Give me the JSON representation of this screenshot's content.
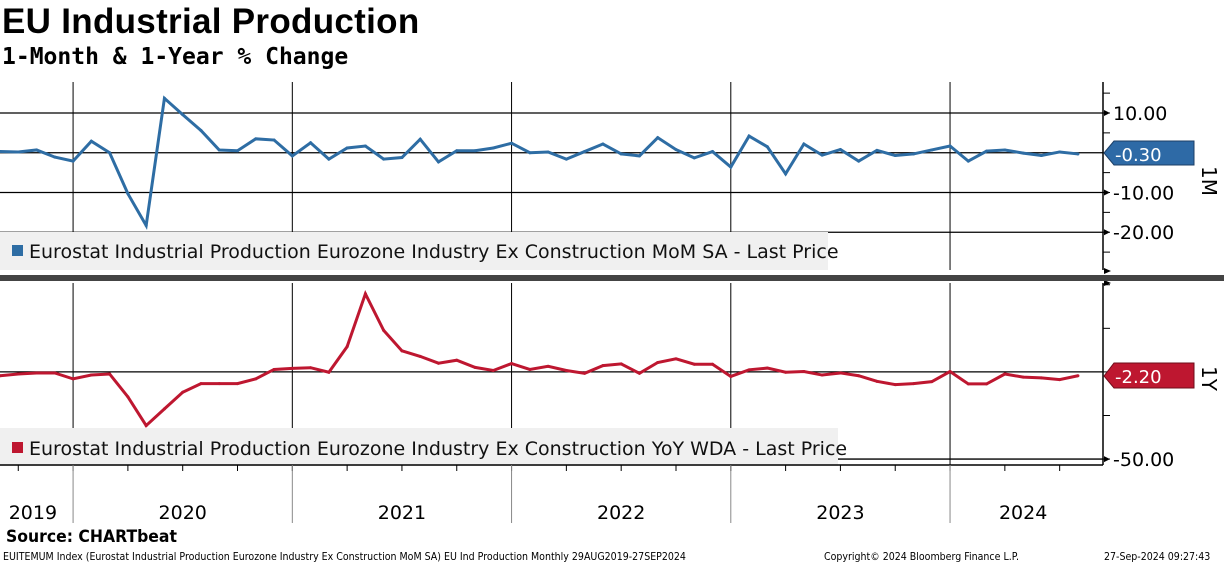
{
  "header": {
    "title": "EU Industrial Production",
    "subtitle": "1-Month & 1-Year % Change"
  },
  "footer": {
    "source": "Source: CHARTbeat",
    "description": "EUITEMUM Index (Eurostat Industrial Production Eurozone Industry Ex Construction MoM SA) EU Ind Production  Monthly 29AUG2019-27SEP2024",
    "copyright": "Copyright© 2024 Bloomberg Finance L.P.",
    "timestamp": "27-Sep-2024 09:27:43"
  },
  "colors": {
    "mom": "#2e6da4",
    "yoy": "#be1730",
    "legend_bg": "#f0f0f0"
  },
  "chart_data": [
    {
      "type": "line",
      "panel": "1M",
      "title": "1-Month % Change",
      "legend": "Eurostat Industrial Production Eurozone Industry Ex Construction MoM SA - Last Price",
      "last_value_label": "-0.30",
      "start": "2019-09",
      "frequency": "monthly",
      "x_tick_labels": [
        "2019",
        "2020",
        "2021",
        "2022",
        "2023",
        "2024"
      ],
      "y_tick_labels": [
        "10.00",
        "-10.00",
        "-20.00"
      ],
      "y_ticks": [
        10,
        -10,
        -20
      ],
      "ylim": [
        -29.5,
        17.8
      ],
      "values": [
        0.3,
        0.2,
        0.7,
        -1.1,
        -2.1,
        2.9,
        0.0,
        -10.3,
        -18.3,
        13.7,
        9.6,
        5.6,
        0.7,
        0.5,
        3.5,
        3.2,
        -0.8,
        2.5,
        -1.6,
        1.2,
        1.7,
        -1.6,
        -1.2,
        3.4,
        -2.3,
        0.5,
        0.5,
        1.2,
        2.4,
        0.0,
        0.2,
        -1.6,
        0.3,
        2.2,
        -0.3,
        -0.8,
        3.8,
        0.8,
        -1.3,
        0.3,
        -3.6,
        4.2,
        1.5,
        -5.3,
        2.2,
        -0.6,
        0.8,
        -2.1,
        0.6,
        -0.7,
        -0.3,
        0.7,
        1.7,
        -2.1,
        0.4,
        0.7,
        -0.1,
        -0.7,
        0.2,
        -0.3
      ]
    },
    {
      "type": "line",
      "panel": "1Y",
      "title": "1-Year % Change",
      "legend": "Eurostat Industrial Production Eurozone Industry Ex Construction YoY WDA - Last Price",
      "last_value_label": "-2.20",
      "start": "2019-09",
      "frequency": "monthly",
      "y_tick_labels": [
        "-50.00"
      ],
      "y_ticks": [
        -50
      ],
      "ylim": [
        -53.4,
        51
      ],
      "values": [
        -2.2,
        -1.2,
        -0.6,
        -0.6,
        -4.0,
        -1.8,
        -1.2,
        -14.3,
        -30.8,
        -21.2,
        -11.7,
        -6.7,
        -6.7,
        -6.7,
        -4.0,
        1.4,
        2.0,
        2.4,
        -0.2,
        14.5,
        44.8,
        23.8,
        12.1,
        8.9,
        5.0,
        6.7,
        2.6,
        0.8,
        4.8,
        1.4,
        3.2,
        0.8,
        -0.8,
        3.6,
        4.6,
        -0.8,
        5.4,
        7.5,
        4.4,
        4.4,
        -2.6,
        1.2,
        2.2,
        -0.2,
        0.2,
        -1.8,
        -0.6,
        -2.2,
        -5.4,
        -7.3,
        -6.7,
        -5.6,
        0.2,
        -6.9,
        -6.9,
        -1.2,
        -3.0,
        -3.4,
        -4.4,
        -2.2
      ]
    }
  ]
}
